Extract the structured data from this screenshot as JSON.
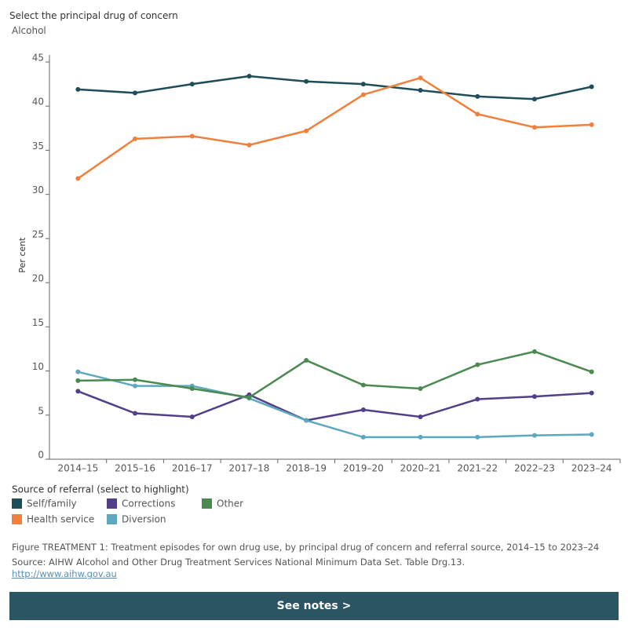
{
  "header": {
    "selector_label": "Select the principal drug of concern",
    "selected": "Alcohol"
  },
  "chart_data": {
    "type": "line",
    "y_label": "Per cent",
    "categories": [
      "2014–15",
      "2015–16",
      "2016–17",
      "2017–18",
      "2018–19",
      "2019–20",
      "2020–21",
      "2021–22",
      "2022–23",
      "2023–24"
    ],
    "series": [
      {
        "name": "Self/family",
        "color": "#1f4e5a",
        "values": [
          41.9,
          41.5,
          42.5,
          43.4,
          42.8,
          42.5,
          41.8,
          41.1,
          40.8,
          42.2
        ]
      },
      {
        "name": "Health service",
        "color": "#f0803c",
        "values": [
          31.8,
          36.3,
          36.6,
          35.6,
          37.2,
          41.3,
          43.2,
          39.1,
          37.6,
          37.9
        ]
      },
      {
        "name": "Corrections",
        "color": "#523f8a",
        "values": [
          7.7,
          5.2,
          4.8,
          7.3,
          4.4,
          5.6,
          4.8,
          6.8,
          7.1,
          7.5
        ]
      },
      {
        "name": "Diversion",
        "color": "#5ea8bf",
        "values": [
          9.9,
          8.3,
          8.3,
          6.9,
          4.4,
          2.5,
          2.5,
          2.5,
          2.7,
          2.8
        ]
      },
      {
        "name": "Other",
        "color": "#4a8a50",
        "values": [
          8.9,
          9.0,
          8.0,
          7.0,
          11.2,
          8.4,
          8.0,
          10.7,
          12.2,
          9.9
        ]
      }
    ],
    "ylim": [
      0,
      45.8
    ],
    "yticks": [
      0,
      5,
      10,
      15,
      20,
      25,
      30,
      35,
      40,
      45
    ],
    "legend_title": "Source of referral (select to highlight)"
  },
  "footer": {
    "caption": "Figure TREATMENT 1: Treatment episodes for own drug use, by principal drug of concern and referral source, 2014–15 to 2023–24",
    "source": "Source: AIHW Alcohol and Other Drug Treatment Services National Minimum Data Set. Table Drg.13.",
    "link": "http://www.aihw.gov.au",
    "button": "See notes >"
  }
}
